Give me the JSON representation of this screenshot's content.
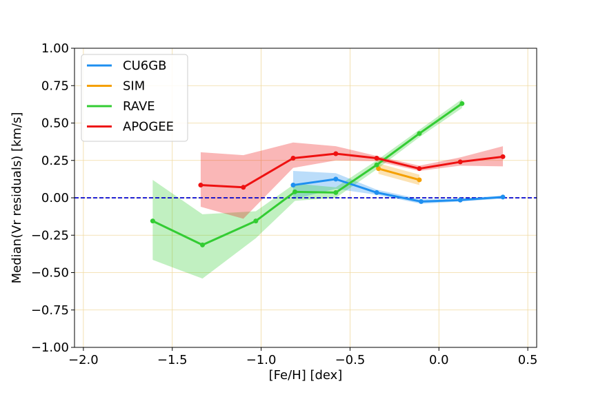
{
  "chart_data": {
    "type": "line",
    "title": "",
    "xlabel": "[Fe/H] [dex]",
    "ylabel": "Median(Vr residuals) [km/s]",
    "xlim": [
      -2.05,
      0.55
    ],
    "ylim": [
      -1.0,
      1.0
    ],
    "xticks": [
      -2.0,
      -1.5,
      -1.0,
      -0.5,
      0.0,
      0.5
    ],
    "xtick_labels": [
      "−2.0",
      "−1.5",
      "−1.0",
      "−0.5",
      "0.0",
      "0.5"
    ],
    "yticks": [
      -1.0,
      -0.75,
      -0.5,
      -0.25,
      0.0,
      0.25,
      0.5,
      0.75,
      1.0
    ],
    "ytick_labels": [
      "−1.00",
      "−0.75",
      "−0.50",
      "−0.25",
      "0.00",
      "0.25",
      "0.50",
      "0.75",
      "1.00"
    ],
    "grid": true,
    "grid_color": "#f0d9a0",
    "legend_position": "top-left",
    "reference_line": {
      "y": 0.0,
      "color": "#0000cc",
      "style": "dashed"
    },
    "series": [
      {
        "name": "CU6GB",
        "color": "#1e8ff0",
        "x": [
          -0.82,
          -0.58,
          -0.35,
          -0.1,
          0.12,
          0.36
        ],
        "y": [
          0.085,
          0.125,
          0.035,
          -0.025,
          -0.015,
          0.005
        ],
        "lower": [
          -0.01,
          0.06,
          0.02,
          -0.04,
          -0.025,
          -0.005
        ],
        "upper": [
          0.18,
          0.165,
          0.055,
          -0.01,
          -0.005,
          0.015
        ]
      },
      {
        "name": "SIM",
        "color": "#f5a000",
        "x": [
          -0.34,
          -0.11
        ],
        "y": [
          0.195,
          0.12
        ],
        "lower": [
          0.16,
          0.085
        ],
        "upper": [
          0.23,
          0.155
        ]
      },
      {
        "name": "RAVE",
        "color": "#33cc33",
        "x": [
          -1.61,
          -1.33,
          -1.03,
          -0.81,
          -0.58,
          -0.35,
          -0.11,
          0.13
        ],
        "y": [
          -0.155,
          -0.315,
          -0.155,
          0.04,
          0.035,
          0.22,
          0.43,
          0.63
        ],
        "lower": [
          -0.415,
          -0.54,
          -0.27,
          -0.02,
          0.0,
          0.19,
          0.405,
          0.6
        ],
        "upper": [
          0.12,
          -0.11,
          -0.09,
          0.095,
          0.07,
          0.25,
          0.455,
          0.66
        ]
      },
      {
        "name": "APOGEE",
        "color": "#ee1111",
        "x": [
          -1.34,
          -1.1,
          -0.82,
          -0.58,
          -0.35,
          -0.11,
          0.12,
          0.36
        ],
        "y": [
          0.085,
          0.07,
          0.265,
          0.295,
          0.265,
          0.195,
          0.24,
          0.275
        ],
        "lower": [
          -0.06,
          -0.14,
          0.2,
          0.25,
          0.245,
          0.18,
          0.215,
          0.21
        ],
        "upper": [
          0.305,
          0.285,
          0.37,
          0.345,
          0.28,
          0.215,
          0.27,
          0.345
        ]
      }
    ]
  }
}
